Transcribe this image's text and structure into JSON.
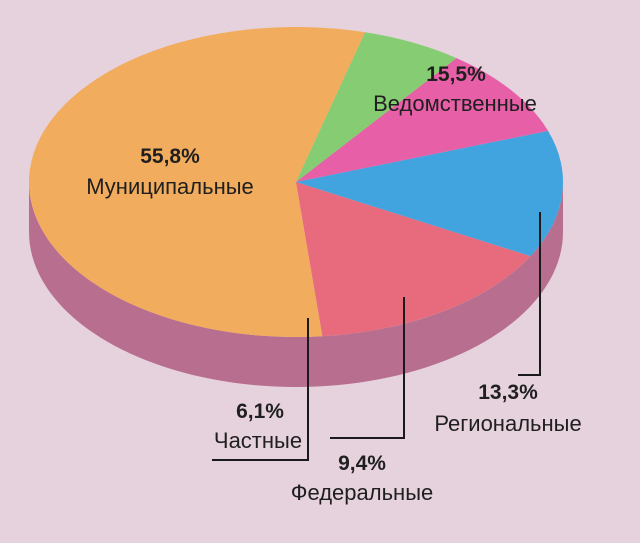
{
  "chart_data": {
    "type": "pie",
    "style": "3d",
    "slices": [
      {
        "label": "Муниципальные",
        "value_label": "55,8%",
        "value": 55.8,
        "color": "#F2AC5E"
      },
      {
        "label": "Ведомственные",
        "value_label": "15,5%",
        "value": 15.5,
        "color": "#E86A7D"
      },
      {
        "label": "Региональные",
        "value_label": "13,3%",
        "value": 13.3,
        "color": "#42A4DF"
      },
      {
        "label": "Федеральные",
        "value_label": "9,4%",
        "value": 9.4,
        "color": "#E65FA7"
      },
      {
        "label": "Частные",
        "value_label": "6,1%",
        "value": 6.1,
        "color": "#86CC72"
      }
    ],
    "side_color": "#B86E8E",
    "background": "#E5D2DD"
  }
}
